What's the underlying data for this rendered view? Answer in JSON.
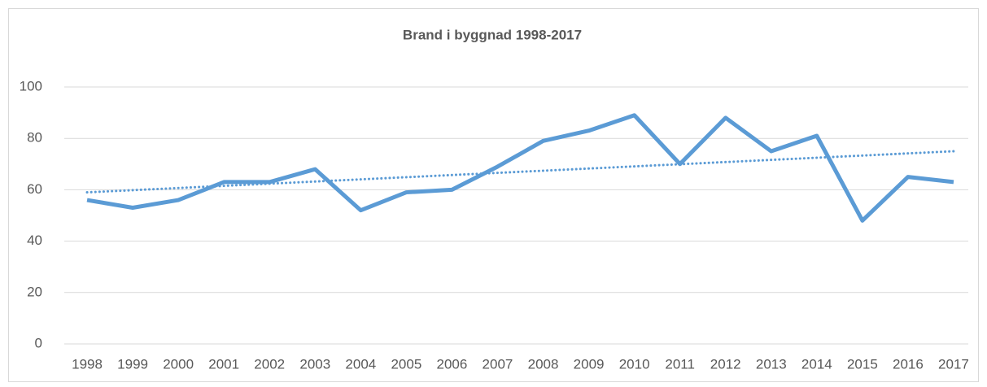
{
  "chart_data": {
    "type": "line",
    "title": "Brand i byggnad 1998-2017",
    "categories": [
      "1998",
      "1999",
      "2000",
      "2001",
      "2002",
      "2003",
      "2004",
      "2005",
      "2006",
      "2007",
      "2008",
      "2009",
      "2010",
      "2011",
      "2012",
      "2013",
      "2014",
      "2015",
      "2016",
      "2017"
    ],
    "series": [
      {
        "color": "#5b9bd5",
        "values": [
          56,
          53,
          56,
          63,
          63,
          68,
          52,
          59,
          60,
          69,
          79,
          83,
          89,
          70,
          88,
          75,
          81,
          48,
          65,
          63
        ]
      }
    ],
    "trend": {
      "color": "#5b9bd5",
      "style": "dotted",
      "values": [
        59,
        75
      ]
    },
    "ylim": [
      0,
      100
    ],
    "yticks": [
      0,
      20,
      40,
      60,
      80,
      100
    ],
    "grid": true
  }
}
